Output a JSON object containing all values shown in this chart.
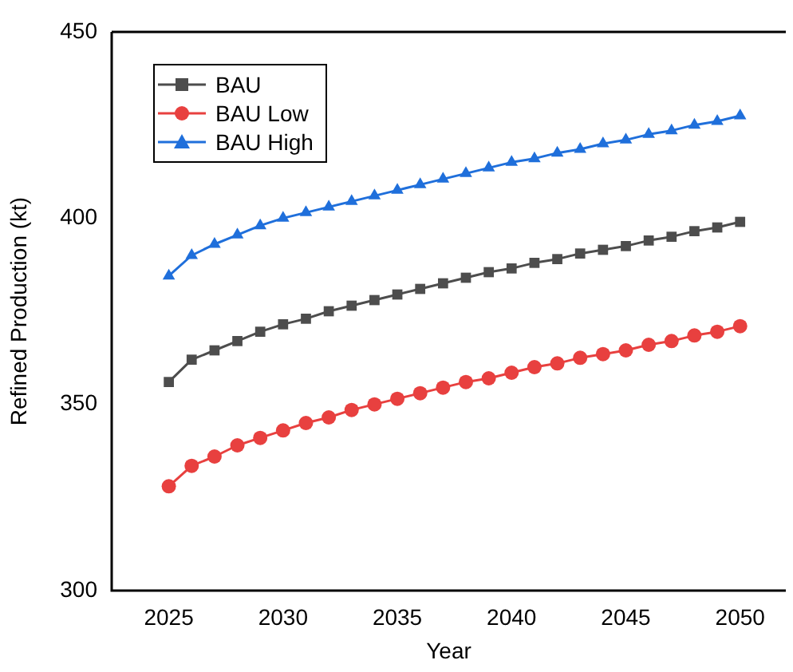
{
  "chart_data": {
    "type": "line",
    "xlabel": "Year",
    "ylabel": "Refined Production (kt)",
    "x": [
      2025,
      2026,
      2027,
      2028,
      2029,
      2030,
      2031,
      2032,
      2033,
      2034,
      2035,
      2036,
      2037,
      2038,
      2039,
      2040,
      2041,
      2042,
      2043,
      2044,
      2045,
      2046,
      2047,
      2048,
      2049,
      2050
    ],
    "series": [
      {
        "name": "BAU",
        "color": "#4d4d4d",
        "marker": "square",
        "values": [
          356,
          362,
          364.5,
          367,
          369.5,
          371.5,
          373,
          375,
          376.5,
          378,
          379.5,
          381,
          382.5,
          384,
          385.5,
          386.5,
          388,
          389,
          390.5,
          391.5,
          392.5,
          394,
          395,
          396.5,
          397.5,
          399
        ]
      },
      {
        "name": "BAU Low",
        "color": "#e8403f",
        "marker": "circle",
        "values": [
          328,
          333.5,
          336,
          339,
          341,
          343,
          345,
          346.5,
          348.5,
          350,
          351.5,
          353,
          354.5,
          356,
          357,
          358.5,
          360,
          361,
          362.5,
          363.5,
          364.5,
          366,
          367,
          368.5,
          369.5,
          371
        ]
      },
      {
        "name": "BAU High",
        "color": "#1f6fdb",
        "marker": "triangle",
        "values": [
          384.5,
          390,
          393,
          395.5,
          398,
          400,
          401.5,
          403,
          404.5,
          406,
          407.5,
          409,
          410.5,
          412,
          413.5,
          415,
          416,
          417.5,
          418.5,
          420,
          421,
          422.5,
          423.5,
          425,
          426,
          427.5
        ]
      }
    ],
    "xlim": [
      2022.5,
      2052
    ],
    "xticks": [
      2025,
      2030,
      2035,
      2040,
      2045,
      2050
    ],
    "ylim": [
      300,
      450
    ],
    "yticks": [
      300,
      350,
      400,
      450
    ],
    "grid": false,
    "legend": "top left",
    "line_style": "solid"
  }
}
